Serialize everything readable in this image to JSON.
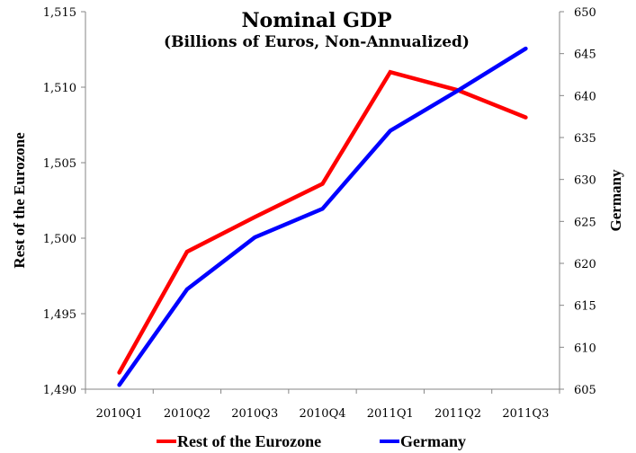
{
  "chart_data": {
    "type": "line",
    "title": "Nominal GDP",
    "subtitle": "(Billions of Euros, Non-Annualized)",
    "categories": [
      "2010Q1",
      "2010Q2",
      "2010Q3",
      "2010Q4",
      "2011Q1",
      "2011Q2",
      "2011Q3"
    ],
    "ylabel_left": "Rest of the Eurozone",
    "ylabel_right": "Germany",
    "ylim_left": [
      1490,
      1515
    ],
    "ylim_right": [
      605,
      650
    ],
    "yticks_left": [
      "1,490",
      "1,495",
      "1,500",
      "1,505",
      "1,510",
      "1,515"
    ],
    "yticks_left_values": [
      1490,
      1495,
      1500,
      1505,
      1510,
      1515
    ],
    "yticks_right": [
      "605",
      "610",
      "615",
      "620",
      "625",
      "630",
      "635",
      "640",
      "645",
      "650"
    ],
    "yticks_right_values": [
      605,
      610,
      615,
      620,
      625,
      630,
      635,
      640,
      645,
      650
    ],
    "grid": false,
    "legend_position": "bottom",
    "series": [
      {
        "name": "Rest of the Eurozone",
        "axis": "left",
        "color": "#ff0000",
        "values": [
          1491.1,
          1499.1,
          1501.4,
          1503.6,
          1511.0,
          1509.8,
          1508.0
        ]
      },
      {
        "name": "Germany",
        "axis": "right",
        "color": "#0000ff",
        "values": [
          605.5,
          616.9,
          623.1,
          626.5,
          635.8,
          640.6,
          645.6
        ]
      }
    ]
  }
}
